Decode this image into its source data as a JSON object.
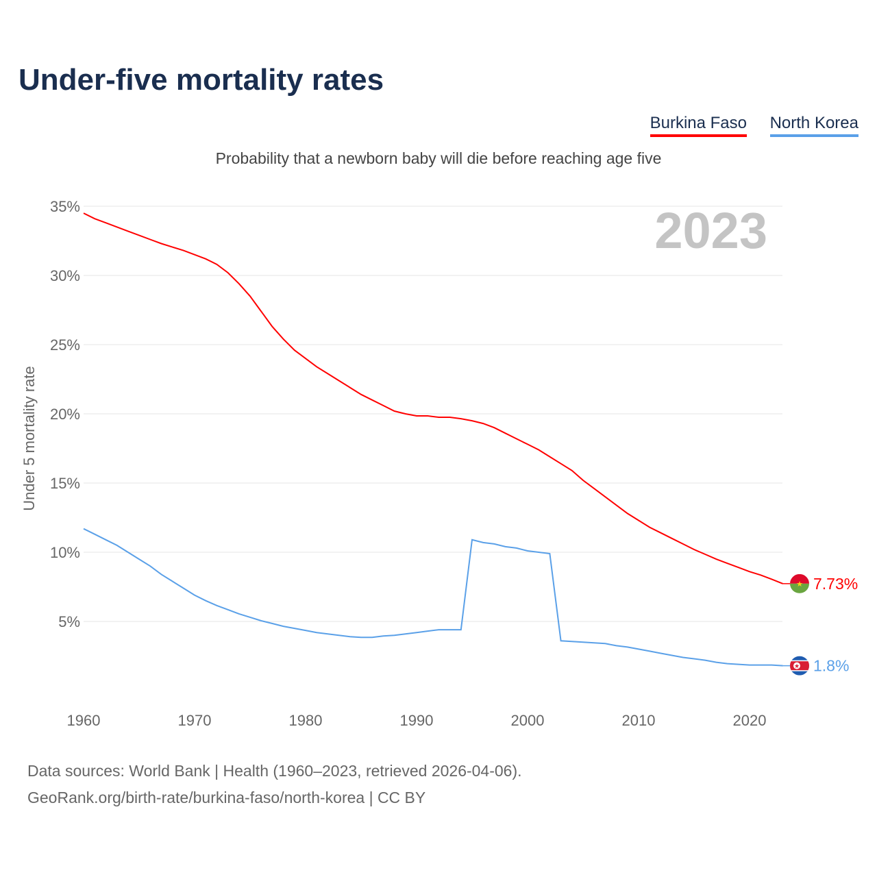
{
  "chart_data": {
    "type": "line",
    "title": "Under-five mortality rates",
    "subtitle": "Probability that a newborn baby will die before reaching age five",
    "ylabel": "Under 5 mortality rate",
    "xlabel": "",
    "year_label": "2023",
    "ylim": [
      0,
      35
    ],
    "xlim": [
      1960,
      2023
    ],
    "yticks": [
      {
        "v": 5,
        "label": "5%"
      },
      {
        "v": 10,
        "label": "10%"
      },
      {
        "v": 15,
        "label": "15%"
      },
      {
        "v": 20,
        "label": "20%"
      },
      {
        "v": 25,
        "label": "25%"
      },
      {
        "v": 30,
        "label": "30%"
      },
      {
        "v": 35,
        "label": "35%"
      }
    ],
    "xticks": [
      {
        "v": 1960,
        "label": "1960"
      },
      {
        "v": 1970,
        "label": "1970"
      },
      {
        "v": 1980,
        "label": "1980"
      },
      {
        "v": 1990,
        "label": "1990"
      },
      {
        "v": 2000,
        "label": "2000"
      },
      {
        "v": 2010,
        "label": "2010"
      },
      {
        "v": 2020,
        "label": "2020"
      }
    ],
    "grid": true,
    "legend_position": "top-right",
    "x_start": 1960,
    "series": [
      {
        "name": "Burkina Faso",
        "color": "#ff0000",
        "end_label": "7.73%",
        "flag": "burkina-faso",
        "values": [
          34.5,
          34.1,
          33.8,
          33.5,
          33.2,
          32.9,
          32.6,
          32.3,
          32.05,
          31.8,
          31.5,
          31.2,
          30.8,
          30.2,
          29.4,
          28.5,
          27.4,
          26.3,
          25.4,
          24.6,
          24.0,
          23.4,
          22.9,
          22.4,
          21.9,
          21.4,
          21.0,
          20.6,
          20.2,
          20.0,
          19.85,
          19.85,
          19.75,
          19.75,
          19.65,
          19.5,
          19.3,
          19.0,
          18.6,
          18.2,
          17.8,
          17.4,
          16.9,
          16.4,
          15.9,
          15.2,
          14.6,
          14.0,
          13.4,
          12.8,
          12.3,
          11.8,
          11.4,
          11.0,
          10.6,
          10.2,
          9.85,
          9.5,
          9.2,
          8.9,
          8.6,
          8.35,
          8.05,
          7.73
        ]
      },
      {
        "name": "North Korea",
        "color": "#5aa0e8",
        "end_label": "1.8%",
        "flag": "north-korea",
        "values": [
          11.7,
          11.3,
          10.9,
          10.5,
          10.0,
          9.5,
          9.0,
          8.4,
          7.9,
          7.4,
          6.9,
          6.5,
          6.15,
          5.85,
          5.55,
          5.3,
          5.05,
          4.85,
          4.65,
          4.5,
          4.35,
          4.2,
          4.1,
          4.0,
          3.9,
          3.85,
          3.85,
          3.95,
          4.0,
          4.1,
          4.2,
          4.3,
          4.4,
          4.4,
          4.4,
          10.9,
          10.7,
          10.6,
          10.4,
          10.3,
          10.1,
          10.0,
          9.9,
          3.6,
          3.55,
          3.5,
          3.45,
          3.4,
          3.25,
          3.15,
          3.0,
          2.85,
          2.7,
          2.55,
          2.4,
          2.3,
          2.2,
          2.05,
          1.95,
          1.9,
          1.85,
          1.85,
          1.85,
          1.8
        ]
      }
    ]
  },
  "footer": {
    "line1": "Data sources: World Bank | Health (1960–2023, retrieved 2026-04-06).",
    "line2": "GeoRank.org/birth-rate/burkina-faso/north-korea | CC BY"
  }
}
